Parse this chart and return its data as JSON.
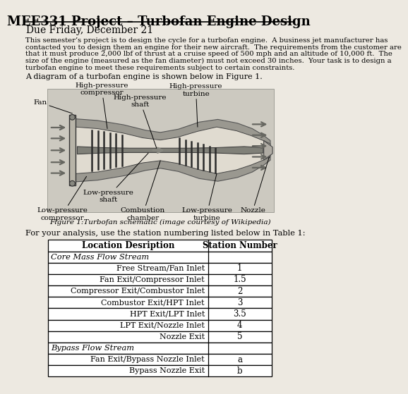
{
  "title": "MEE331 Project – Turbofan Engine Design",
  "subtitle": "Due Friday, December 21",
  "body_lines": [
    "This semester’s project is to design the cycle for a turbofan engine.  A business jet manufacturer has",
    "contacted you to design them an engine for their new aircraft.  The requirements from the customer are",
    "that it must produce 2,000 lbf of thrust at a cruise speed of 500 mph and an altitude of 10,000 ft.  The",
    "size of the engine (measured as the fan diameter) must not exceed 30 inches.  Your task is to design a",
    "turbofan engine to meet these requirements subject to certain constraints."
  ],
  "figure_intro": "A diagram of a turbofan engine is shown below in Figure 1.",
  "figure_caption": "Figure 1:Turbofan schematic (image courtesy of Wikipedia)",
  "table_intro": "For your analysis, use the station numbering listed below in Table 1:",
  "table_header": [
    "Location Desription",
    "Station Number"
  ],
  "table_rows": [
    [
      "Core Mass Flow Stream",
      "",
      true
    ],
    [
      "Free Stream/Fan Inlet",
      "1",
      false
    ],
    [
      "Fan Exit/Compressor Inlet",
      "1.5",
      false
    ],
    [
      "Compressor Exit/Combustor Inlet",
      "2",
      false
    ],
    [
      "Combustor Exit/HPT Inlet",
      "3",
      false
    ],
    [
      "HPT Exit/LPT Inlet",
      "3.5",
      false
    ],
    [
      "LPT Exit/Nozzle Inlet",
      "4",
      false
    ],
    [
      "Nozzle Exit",
      "5",
      false
    ],
    [
      "Bypass Flow Stream",
      "",
      true
    ],
    [
      "Fan Exit/Bypass Nozzle Inlet",
      "a",
      false
    ],
    [
      "Bypass Nozzle Exit",
      "b",
      false
    ]
  ],
  "bg_color": "#ede9e1",
  "text_color": "#000000"
}
